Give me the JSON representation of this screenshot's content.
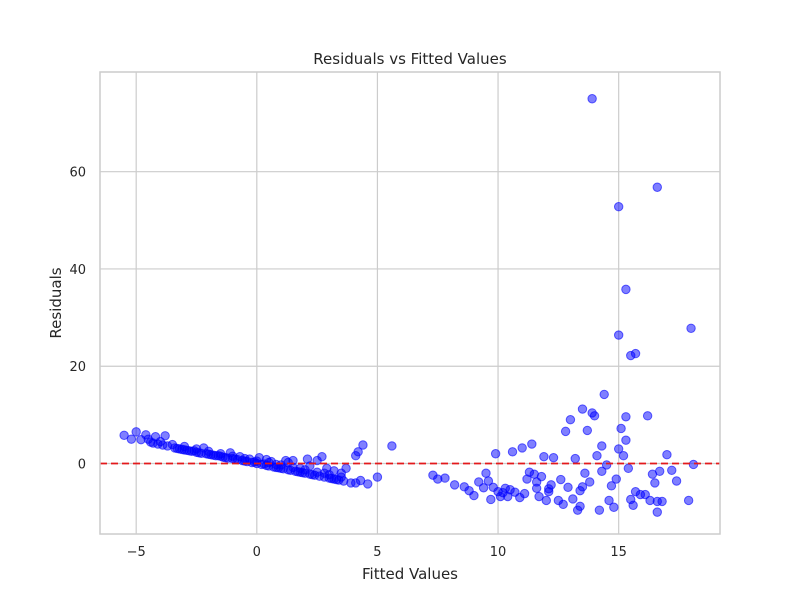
{
  "chart_data": {
    "type": "scatter",
    "title": "Residuals vs Fitted Values",
    "xlabel": "Fitted Values",
    "ylabel": "Residuals",
    "xlim": [
      -6.5,
      19.2
    ],
    "ylim": [
      -14.5,
      80.5
    ],
    "xticks": [
      -5,
      0,
      5,
      10,
      15
    ],
    "yticks": [
      0,
      20,
      40,
      60
    ],
    "xtick_labels": [
      "−5",
      "0",
      "5",
      "10",
      "15"
    ],
    "ytick_labels": [
      "0",
      "20",
      "40",
      "60"
    ],
    "grid": true,
    "colors": {
      "points": "#0000ff",
      "reference_line": "#e31a1c",
      "grid": "#cccccc",
      "spine": "#cccccc"
    },
    "reference_line": {
      "y": 0,
      "style": "dashed"
    },
    "series": [
      {
        "points": [
          [
            -5.5,
            5.8
          ],
          [
            -5.2,
            5.0
          ],
          [
            -5.0,
            6.5
          ],
          [
            -4.8,
            4.9
          ],
          [
            -4.6,
            5.9
          ],
          [
            -4.4,
            4.4
          ],
          [
            -4.3,
            4.2
          ],
          [
            -4.2,
            5.5
          ],
          [
            -4.1,
            4.0
          ],
          [
            -3.9,
            3.8
          ],
          [
            -3.8,
            5.7
          ],
          [
            -3.7,
            3.6
          ],
          [
            -3.4,
            3.2
          ],
          [
            -3.3,
            3.1
          ],
          [
            -3.2,
            3.0
          ],
          [
            -3.1,
            2.9
          ],
          [
            -3.0,
            2.8
          ],
          [
            -2.9,
            2.7
          ],
          [
            -2.8,
            2.6
          ],
          [
            -2.7,
            2.5
          ],
          [
            -2.6,
            2.6
          ],
          [
            -2.5,
            2.3
          ],
          [
            -2.4,
            2.2
          ],
          [
            -2.3,
            2.1
          ],
          [
            -2.2,
            3.2
          ],
          [
            -2.1,
            2.0
          ],
          [
            -2.0,
            1.9
          ],
          [
            -1.9,
            1.8
          ],
          [
            -1.8,
            1.7
          ],
          [
            -1.7,
            1.6
          ],
          [
            -1.6,
            1.6
          ],
          [
            -1.5,
            1.5
          ],
          [
            -1.4,
            1.3
          ],
          [
            -1.3,
            1.2
          ],
          [
            -1.2,
            1.1
          ],
          [
            -1.1,
            2.2
          ],
          [
            -1.0,
            1.0
          ],
          [
            -0.9,
            0.9
          ],
          [
            -0.8,
            0.8
          ],
          [
            -0.7,
            1.4
          ],
          [
            -0.6,
            0.6
          ],
          [
            -0.5,
            0.5
          ],
          [
            -0.4,
            0.4
          ],
          [
            -0.3,
            0.9
          ],
          [
            -0.2,
            0.2
          ],
          [
            -0.1,
            0.3
          ],
          [
            0.0,
            0.0
          ],
          [
            0.1,
            1.2
          ],
          [
            0.2,
            -0.2
          ],
          [
            0.3,
            -0.1
          ],
          [
            0.4,
            -0.4
          ],
          [
            0.5,
            -0.5
          ],
          [
            0.6,
            0.4
          ],
          [
            0.7,
            -0.7
          ],
          [
            0.8,
            -0.8
          ],
          [
            0.9,
            -0.9
          ],
          [
            1.0,
            -1.0
          ],
          [
            1.1,
            -1.1
          ],
          [
            1.2,
            0.6
          ],
          [
            1.3,
            -1.3
          ],
          [
            1.4,
            -1.4
          ],
          [
            1.5,
            0.6
          ],
          [
            1.6,
            -1.6
          ],
          [
            1.7,
            -1.7
          ],
          [
            1.8,
            -1.8
          ],
          [
            1.9,
            -1.9
          ],
          [
            2.0,
            -2.0
          ],
          [
            2.1,
            0.9
          ],
          [
            2.2,
            -2.2
          ],
          [
            2.3,
            -2.3
          ],
          [
            2.4,
            -2.4
          ],
          [
            2.5,
            0.6
          ],
          [
            2.6,
            -2.6
          ],
          [
            2.7,
            1.4
          ],
          [
            2.8,
            -2.8
          ],
          [
            2.9,
            -1.0
          ],
          [
            3.0,
            -3.0
          ],
          [
            3.1,
            -3.1
          ],
          [
            3.2,
            -3.2
          ],
          [
            3.3,
            -3.3
          ],
          [
            3.4,
            -3.4
          ],
          [
            3.5,
            -2.0
          ],
          [
            3.6,
            -3.6
          ],
          [
            3.7,
            -1.0
          ],
          [
            -4.5,
            5.0
          ],
          [
            -4.0,
            4.5
          ],
          [
            -3.5,
            3.9
          ],
          [
            -3.0,
            3.5
          ],
          [
            -2.5,
            3.0
          ],
          [
            -2.0,
            2.5
          ],
          [
            -1.5,
            2.0
          ],
          [
            -1.0,
            1.5
          ],
          [
            -0.5,
            1.0
          ],
          [
            0.0,
            0.5
          ],
          [
            0.5,
            0.2
          ],
          [
            1.0,
            -0.3
          ],
          [
            1.5,
            -0.8
          ],
          [
            2.0,
            -1.3
          ],
          [
            2.5,
            -1.8
          ],
          [
            3.0,
            -2.3
          ],
          [
            3.5,
            -2.8
          ],
          [
            0.8,
            -0.2
          ],
          [
            1.8,
            -1.0
          ],
          [
            2.8,
            -2.0
          ],
          [
            3.2,
            -1.5
          ],
          [
            2.2,
            -0.5
          ],
          [
            1.3,
            0.2
          ],
          [
            0.4,
            0.8
          ],
          [
            4.1,
            1.6
          ],
          [
            4.2,
            2.4
          ],
          [
            4.4,
            3.8
          ],
          [
            4.6,
            -4.2
          ],
          [
            5.0,
            -2.8
          ],
          [
            5.6,
            3.6
          ],
          [
            3.9,
            -4.0
          ],
          [
            4.1,
            -4.0
          ],
          [
            4.3,
            -3.5
          ],
          [
            7.3,
            -2.4
          ],
          [
            7.5,
            -3.2
          ],
          [
            7.8,
            -3.0
          ],
          [
            8.2,
            -4.4
          ],
          [
            8.6,
            -4.8
          ],
          [
            8.8,
            -5.6
          ],
          [
            9.0,
            -6.6
          ],
          [
            9.2,
            -3.8
          ],
          [
            9.4,
            -5.0
          ],
          [
            9.5,
            -2.0
          ],
          [
            9.6,
            -3.6
          ],
          [
            9.7,
            -7.4
          ],
          [
            9.8,
            -4.9
          ],
          [
            9.9,
            2.0
          ],
          [
            10.0,
            -5.8
          ],
          [
            10.1,
            -6.8
          ],
          [
            10.2,
            -6.0
          ],
          [
            10.3,
            -5.1
          ],
          [
            10.4,
            -6.8
          ],
          [
            10.5,
            -5.4
          ],
          [
            10.6,
            2.4
          ],
          [
            10.7,
            -5.9
          ],
          [
            10.9,
            -7.0
          ],
          [
            11.0,
            3.2
          ],
          [
            11.1,
            -6.2
          ],
          [
            11.2,
            -3.2
          ],
          [
            11.3,
            -1.8
          ],
          [
            11.4,
            4.0
          ],
          [
            11.5,
            -2.2
          ],
          [
            11.6,
            -3.8
          ],
          [
            11.7,
            -6.8
          ],
          [
            11.8,
            -2.7
          ],
          [
            11.9,
            1.4
          ],
          [
            12.0,
            -7.6
          ],
          [
            12.1,
            -5.8
          ],
          [
            12.2,
            -4.4
          ],
          [
            12.3,
            1.2
          ],
          [
            12.5,
            -7.6
          ],
          [
            12.6,
            -3.3
          ],
          [
            12.7,
            -8.4
          ],
          [
            12.8,
            6.6
          ],
          [
            12.9,
            -4.9
          ],
          [
            13.0,
            9.0
          ],
          [
            13.1,
            -7.3
          ],
          [
            13.2,
            1.0
          ],
          [
            13.3,
            -9.6
          ],
          [
            13.4,
            -5.6
          ],
          [
            13.5,
            -4.8
          ],
          [
            13.5,
            11.2
          ],
          [
            13.6,
            -2.0
          ],
          [
            13.7,
            6.8
          ],
          [
            13.8,
            -3.8
          ],
          [
            13.9,
            10.4
          ],
          [
            14.0,
            9.8
          ],
          [
            14.1,
            1.6
          ],
          [
            14.2,
            -9.6
          ],
          [
            14.3,
            3.6
          ],
          [
            14.3,
            -1.6
          ],
          [
            14.4,
            14.2
          ],
          [
            14.5,
            -0.3
          ],
          [
            14.6,
            -7.6
          ],
          [
            14.7,
            -4.6
          ],
          [
            14.8,
            -9.0
          ],
          [
            14.9,
            -3.2
          ],
          [
            15.0,
            3.0
          ],
          [
            15.1,
            7.2
          ],
          [
            15.2,
            1.6
          ],
          [
            15.3,
            9.6
          ],
          [
            15.3,
            4.8
          ],
          [
            15.4,
            -1.0
          ],
          [
            15.5,
            -7.4
          ],
          [
            15.6,
            -8.6
          ],
          [
            15.7,
            -5.8
          ],
          [
            15.9,
            -6.4
          ],
          [
            16.1,
            -6.4
          ],
          [
            16.2,
            9.8
          ],
          [
            16.3,
            -7.6
          ],
          [
            16.4,
            -2.2
          ],
          [
            16.5,
            -4.0
          ],
          [
            16.6,
            -10.0
          ],
          [
            16.7,
            -1.6
          ],
          [
            16.8,
            -7.8
          ],
          [
            17.0,
            1.8
          ],
          [
            17.2,
            -1.4
          ],
          [
            17.4,
            -3.6
          ],
          [
            17.9,
            -7.6
          ],
          [
            18.1,
            -0.2
          ],
          [
            16.6,
            -7.8
          ],
          [
            13.4,
            -8.8
          ],
          [
            12.1,
            -5.2
          ],
          [
            11.6,
            -5.1
          ],
          [
            13.9,
            75.0
          ],
          [
            16.6,
            56.8
          ],
          [
            15.0,
            52.8
          ],
          [
            15.3,
            35.8
          ],
          [
            15.0,
            26.4
          ],
          [
            18.0,
            27.8
          ],
          [
            15.7,
            22.6
          ],
          [
            15.5,
            22.2
          ]
        ]
      }
    ]
  }
}
